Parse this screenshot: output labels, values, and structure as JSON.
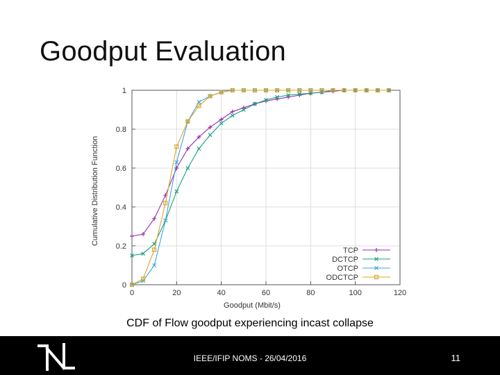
{
  "slide": {
    "title": "Goodput Evaluation",
    "caption": "CDF of Flow goodput experiencing incast collapse",
    "footer_text": "IEEE/IFIP NOMS - 26/04/2016",
    "page_number": "11",
    "logo_icon": "n-logo-icon"
  },
  "chart_data": {
    "type": "line",
    "xlabel": "Goodput (Mbit/s)",
    "ylabel": "Cumulative Distribution Function",
    "xlim": [
      0,
      120
    ],
    "ylim": [
      0,
      1
    ],
    "xticks": [
      0,
      20,
      40,
      60,
      80,
      100,
      120
    ],
    "yticks": [
      0,
      0.2,
      0.4,
      0.6,
      0.8,
      1
    ],
    "grid": true,
    "legend_position": "bottom-right",
    "series": [
      {
        "name": "TCP",
        "color": "#9b2fae",
        "marker": "+",
        "x": [
          0,
          5,
          10,
          15,
          20,
          25,
          30,
          35,
          40,
          45,
          50,
          55,
          60,
          65,
          70,
          75,
          80,
          85,
          90,
          95,
          100,
          105,
          110,
          115
        ],
        "y": [
          0.25,
          0.26,
          0.34,
          0.46,
          0.6,
          0.7,
          0.76,
          0.81,
          0.85,
          0.89,
          0.91,
          0.93,
          0.945,
          0.955,
          0.965,
          0.975,
          0.985,
          0.99,
          0.995,
          1,
          1,
          1,
          1,
          1
        ]
      },
      {
        "name": "DCTCP",
        "color": "#1a9e80",
        "marker": "x",
        "x": [
          0,
          5,
          10,
          15,
          20,
          25,
          30,
          35,
          40,
          45,
          50,
          55,
          60,
          65,
          70,
          75,
          80,
          85,
          90,
          95,
          100,
          105,
          110,
          115
        ],
        "y": [
          0.15,
          0.16,
          0.21,
          0.33,
          0.48,
          0.6,
          0.7,
          0.77,
          0.83,
          0.87,
          0.9,
          0.93,
          0.95,
          0.965,
          0.975,
          0.98,
          0.985,
          0.99,
          1,
          1,
          1,
          1,
          1,
          1
        ]
      },
      {
        "name": "OTCP",
        "color": "#3aa7e0",
        "marker": "x",
        "x": [
          0,
          5,
          10,
          15,
          20,
          25,
          30,
          35,
          40,
          45,
          50,
          55,
          60,
          65,
          70,
          75,
          80,
          85,
          90,
          95,
          100,
          105,
          110,
          115
        ],
        "y": [
          0,
          0.02,
          0.1,
          0.33,
          0.63,
          0.84,
          0.94,
          0.97,
          0.99,
          1,
          1,
          1,
          1,
          1,
          1,
          1,
          1,
          1,
          1,
          1,
          1,
          1,
          1,
          1
        ]
      },
      {
        "name": "ODCTCP",
        "color": "#d9a52a",
        "marker": "square",
        "x": [
          0,
          5,
          10,
          15,
          20,
          25,
          30,
          35,
          40,
          45,
          50,
          55,
          60,
          65,
          70,
          75,
          80,
          85,
          90,
          95,
          100,
          105,
          110,
          115
        ],
        "y": [
          0,
          0.03,
          0.18,
          0.42,
          0.71,
          0.84,
          0.92,
          0.97,
          0.99,
          1,
          1,
          1,
          1,
          1,
          1,
          1,
          1,
          1,
          1,
          1,
          1,
          1,
          1,
          1
        ]
      }
    ]
  }
}
